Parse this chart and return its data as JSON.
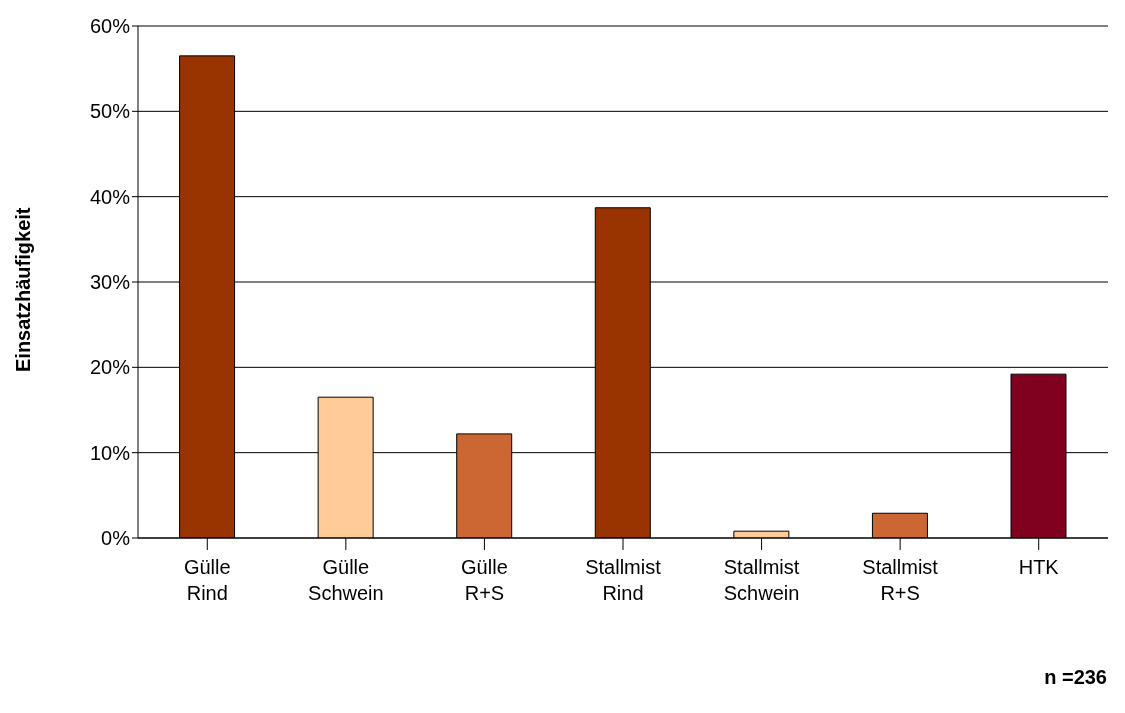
{
  "chart_data": {
    "type": "bar",
    "ylabel": "Einsatzhäufigkeit",
    "categories": [
      "Gülle Rind",
      "Gülle Schwein",
      "Gülle R+S",
      "Stallmist Rind",
      "Stallmist Schwein",
      "Stallmist R+S",
      "HTK"
    ],
    "values": [
      56.5,
      16.5,
      12.2,
      38.7,
      0.8,
      2.9,
      19.2
    ],
    "colors": [
      "#993300",
      "#ffcc99",
      "#cc6633",
      "#993300",
      "#ffcc99",
      "#cc6633",
      "#800020"
    ],
    "ylim": [
      0,
      60
    ],
    "yticks": [
      {
        "value": 0,
        "label": "0%"
      },
      {
        "value": 10,
        "label": "10%"
      },
      {
        "value": 20,
        "label": "20%"
      },
      {
        "value": 30,
        "label": "30%"
      },
      {
        "value": 40,
        "label": "40%"
      },
      {
        "value": 50,
        "label": "50%"
      },
      {
        "value": 60,
        "label": "60%"
      }
    ],
    "grid": "y",
    "legend": false,
    "annotations": [
      "n =236"
    ]
  }
}
